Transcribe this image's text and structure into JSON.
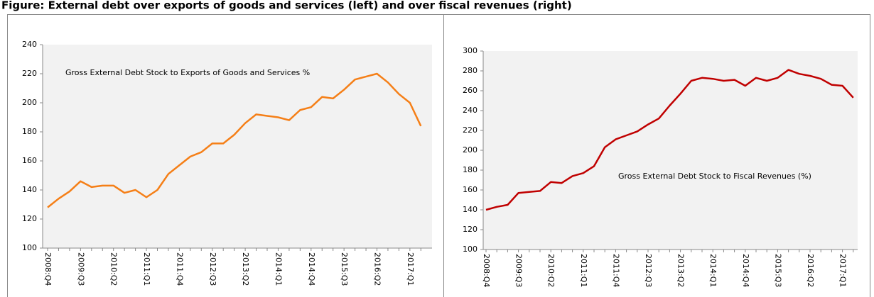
{
  "title": "Figure: External debt over exports of goods and services (left) and over fiscal revenues (right)",
  "chart_data": [
    {
      "type": "line",
      "annotation": "Gross External Debt Stock to Exports of Goods and Services %",
      "categories": [
        "2008:Q4",
        null,
        null,
        "2009:Q3",
        null,
        null,
        "2010:Q2",
        null,
        null,
        "2011:Q1",
        null,
        null,
        "2011:Q4",
        null,
        null,
        "2012:Q3",
        null,
        null,
        "2013:Q2",
        null,
        null,
        "2014:Q1",
        null,
        null,
        "2014:Q4",
        null,
        null,
        "2015:Q3",
        null,
        null,
        "2016:Q2",
        null,
        null,
        "2017:Q1",
        null
      ],
      "series": [
        {
          "color": "#f57f17",
          "values": [
            128,
            134,
            139,
            146,
            142,
            143,
            143,
            138,
            140,
            135,
            140,
            151,
            157,
            163,
            166,
            172,
            172,
            178,
            186,
            192,
            191,
            190,
            188,
            195,
            197,
            204,
            203,
            209,
            216,
            218,
            220,
            214,
            206,
            200,
            184
          ]
        }
      ],
      "ylim": [
        100,
        240
      ],
      "yticks": [
        100,
        120,
        140,
        160,
        180,
        200,
        220,
        240
      ]
    },
    {
      "type": "line",
      "annotation": "Gross External Debt Stock to Fiscal Revenues (%)",
      "categories": [
        "2008:Q4",
        null,
        null,
        "2009:Q3",
        null,
        null,
        "2010:Q2",
        null,
        null,
        "2011:Q1",
        null,
        null,
        "2011:Q4",
        null,
        null,
        "2012:Q3",
        null,
        null,
        "2013:Q2",
        null,
        null,
        "2014:Q1",
        null,
        null,
        "2014:Q4",
        null,
        null,
        "2015:Q3",
        null,
        null,
        "2016:Q2",
        null,
        null,
        "2017:Q1",
        null
      ],
      "series": [
        {
          "color": "#c00000",
          "values": [
            140,
            143,
            145,
            157,
            158,
            159,
            168,
            167,
            174,
            177,
            184,
            203,
            211,
            215,
            219,
            226,
            232,
            245,
            257,
            270,
            273,
            272,
            270,
            271,
            265,
            273,
            270,
            273,
            281,
            277,
            275,
            272,
            266,
            265,
            253
          ]
        }
      ],
      "ylim": [
        100,
        300
      ],
      "yticks": [
        100,
        120,
        140,
        160,
        180,
        200,
        220,
        240,
        260,
        280,
        300
      ]
    }
  ]
}
